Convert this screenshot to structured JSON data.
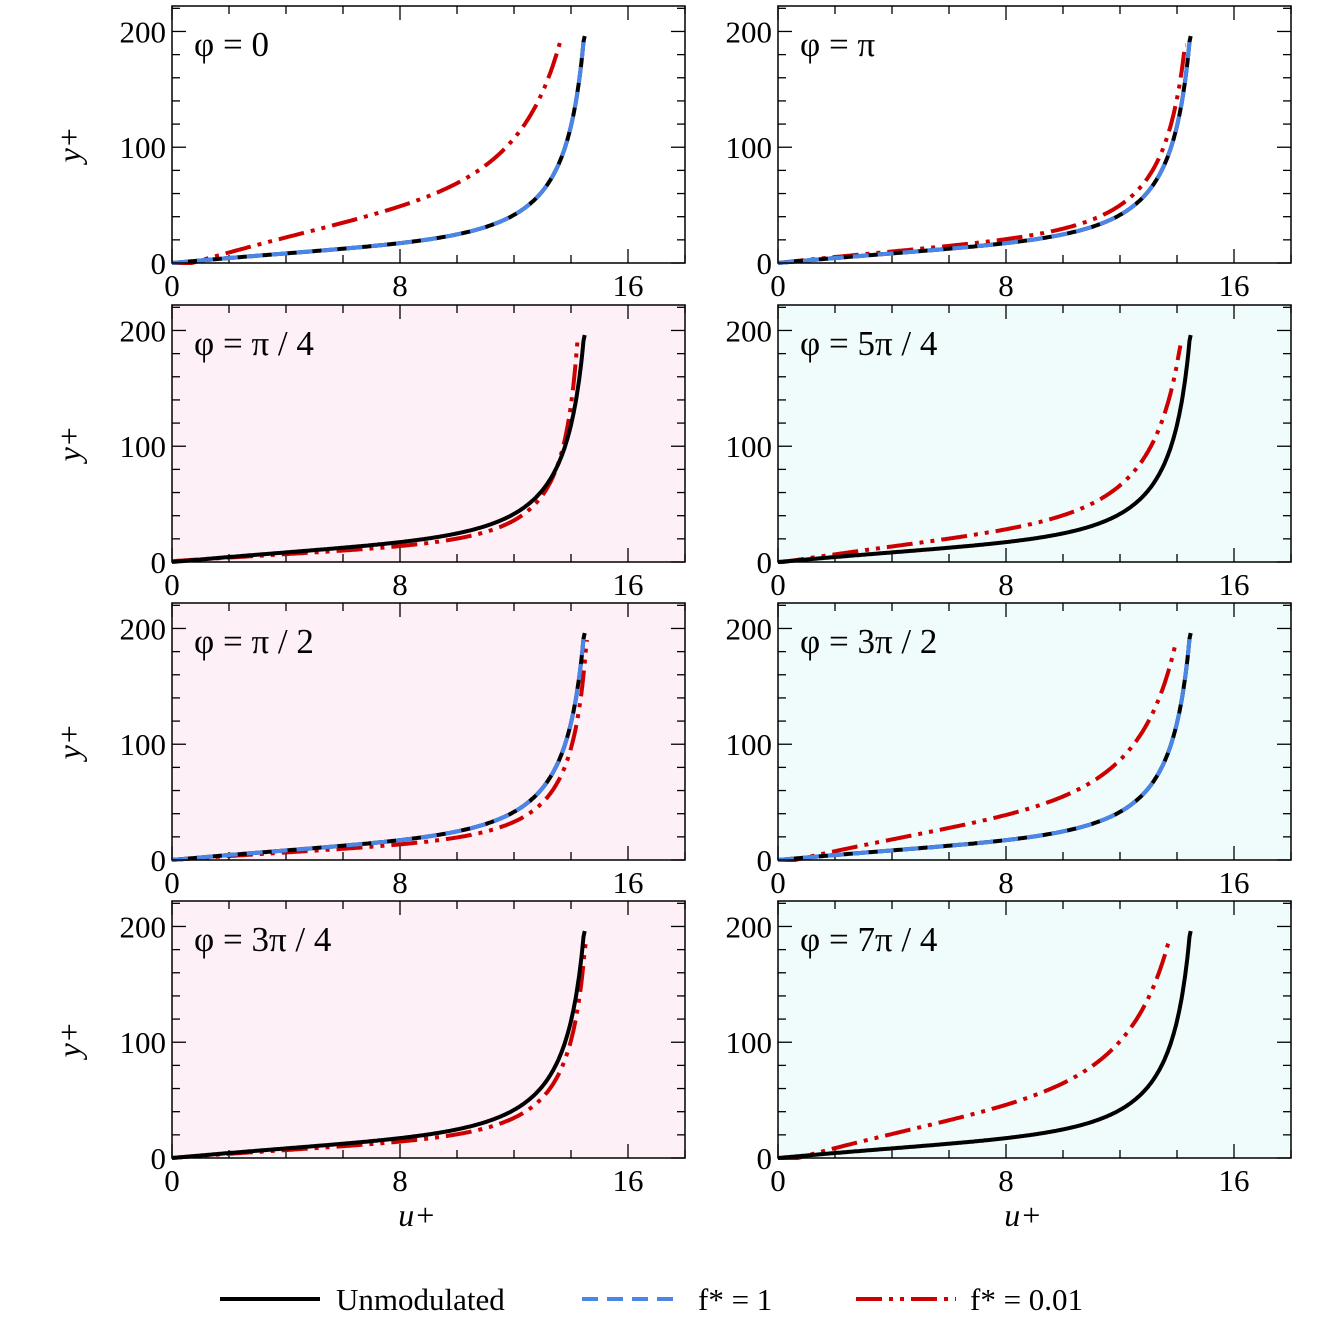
{
  "colors": {
    "unmodulated": "#000000",
    "f1": "#4a86e8",
    "f001": "#cc0000",
    "bg_white": "#ffffff",
    "bg_pink": "#fdf0f7",
    "bg_cyan": "#f0fbfb"
  },
  "legend": {
    "unmodulated": "Unmodulated",
    "f1": "f* = 1",
    "f001": "f* = 0.01"
  },
  "chart_data": [
    {
      "type": "line",
      "title": "φ = 0",
      "background": "bg_white",
      "xlabel": "",
      "ylabel": "y+",
      "xlim": [
        0,
        18
      ],
      "ylim": [
        0,
        222
      ],
      "xticks": [
        "0",
        "8",
        "16"
      ],
      "yticks": [
        "0",
        "100",
        "200"
      ],
      "series": [
        {
          "name": "Unmodulated",
          "ushift": 0,
          "ymax": 196
        },
        {
          "name": "f* = 1",
          "ushift": 0,
          "ymax": 196
        },
        {
          "name": "f* = 0.01",
          "ushift": 0.7,
          "ymax": 193,
          "ystretch": 3.2
        }
      ]
    },
    {
      "type": "line",
      "title": "φ = π",
      "background": "bg_white",
      "xlabel": "",
      "ylabel": "",
      "xlim": [
        0,
        18
      ],
      "ylim": [
        0,
        222
      ],
      "xticks": [
        "0",
        "8",
        "16"
      ],
      "yticks": [
        "0",
        "100",
        "200"
      ],
      "series": [
        {
          "name": "Unmodulated",
          "ushift": 0,
          "ymax": 196
        },
        {
          "name": "f* = 1",
          "ushift": 0,
          "ymax": 196
        },
        {
          "name": "f* = 0.01",
          "ushift": 0,
          "ymax": 188,
          "ystretch": 1.2
        }
      ]
    },
    {
      "type": "line",
      "title": "φ = π / 4",
      "background": "bg_pink",
      "xlabel": "",
      "ylabel": "y+",
      "xlim": [
        0,
        18
      ],
      "ylim": [
        0,
        222
      ],
      "xticks": [
        "0",
        "8",
        "16"
      ],
      "yticks": [
        "0",
        "100",
        "200"
      ],
      "series": [
        {
          "name": "Unmodulated",
          "ushift": 0,
          "ymax": 196
        },
        {
          "name": "f* = 0.01",
          "ushift": -0.4,
          "ymax": 194,
          "ystretch": 0.75
        }
      ]
    },
    {
      "type": "line",
      "title": "φ = 5π / 4",
      "background": "bg_cyan",
      "xlabel": "",
      "ylabel": "",
      "xlim": [
        0,
        18
      ],
      "ylim": [
        0,
        222
      ],
      "xticks": [
        "0",
        "8",
        "16"
      ],
      "yticks": [
        "0",
        "100",
        "200"
      ],
      "series": [
        {
          "name": "Unmodulated",
          "ushift": 0,
          "ymax": 196
        },
        {
          "name": "f* = 0.01",
          "ushift": 0.2,
          "ymax": 187,
          "ystretch": 1.7
        }
      ]
    },
    {
      "type": "line",
      "title": "φ = π / 2",
      "background": "bg_pink",
      "xlabel": "",
      "ylabel": "y+",
      "xlim": [
        0,
        18
      ],
      "ylim": [
        0,
        222
      ],
      "xticks": [
        "0",
        "8",
        "16"
      ],
      "yticks": [
        "0",
        "100",
        "200"
      ],
      "series": [
        {
          "name": "Unmodulated",
          "ushift": 0,
          "ymax": 196
        },
        {
          "name": "f* = 1",
          "ushift": 0,
          "ymax": 196
        },
        {
          "name": "f* = 0.01",
          "ushift": -0.05,
          "ymax": 190,
          "ystretch": 0.78
        }
      ]
    },
    {
      "type": "line",
      "title": "φ = 3π / 2",
      "background": "bg_cyan",
      "xlabel": "",
      "ylabel": "",
      "xlim": [
        0,
        18
      ],
      "ylim": [
        0,
        222
      ],
      "xticks": [
        "0",
        "8",
        "16"
      ],
      "yticks": [
        "0",
        "100",
        "200"
      ],
      "series": [
        {
          "name": "Unmodulated",
          "ushift": 0,
          "ymax": 196
        },
        {
          "name": "f* = 1",
          "ushift": 0,
          "ymax": 196
        },
        {
          "name": "f* = 0.01",
          "ushift": 0.6,
          "ymax": 188,
          "ystretch": 2.5
        }
      ]
    },
    {
      "type": "line",
      "title": "φ = 3π / 4",
      "background": "bg_pink",
      "xlabel": "u+",
      "ylabel": "y+",
      "xlim": [
        0,
        18
      ],
      "ylim": [
        0,
        222
      ],
      "xticks": [
        "0",
        "8",
        "16"
      ],
      "yticks": [
        "0",
        "100",
        "200"
      ],
      "series": [
        {
          "name": "Unmodulated",
          "ushift": 0,
          "ymax": 196
        },
        {
          "name": "f* = 0.01",
          "ushift": -0.05,
          "ymax": 186,
          "ystretch": 0.82
        }
      ]
    },
    {
      "type": "line",
      "title": "φ = 7π / 4",
      "background": "bg_cyan",
      "xlabel": "u+",
      "ylabel": "",
      "xlim": [
        0,
        18
      ],
      "ylim": [
        0,
        222
      ],
      "xticks": [
        "0",
        "8",
        "16"
      ],
      "yticks": [
        "0",
        "100",
        "200"
      ],
      "series": [
        {
          "name": "Unmodulated",
          "ushift": 0,
          "ymax": 196
        },
        {
          "name": "f* = 0.01",
          "ushift": 0.7,
          "ymax": 187,
          "ystretch": 3.0
        }
      ]
    }
  ]
}
